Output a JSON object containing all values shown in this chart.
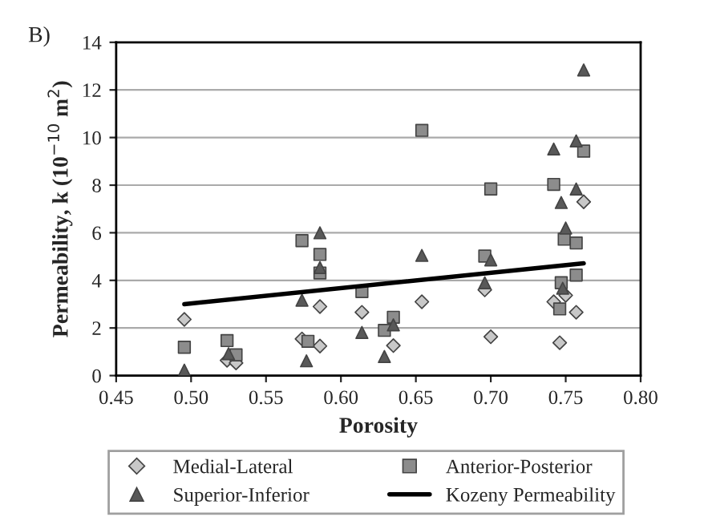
{
  "chart_data": {
    "type": "scatter",
    "title": "B)",
    "xlabel": "Porosity",
    "ylabel": "Permeability, k (10$^{−10}$ m$^{2}$)",
    "xlim": [
      0.45,
      0.8
    ],
    "xticks": [
      {
        "value": 0.45,
        "label": "0.45"
      },
      {
        "value": 0.5,
        "label": "0.50"
      },
      {
        "value": 0.55,
        "label": "0.55"
      },
      {
        "value": 0.6,
        "label": "0.60"
      },
      {
        "value": 0.65,
        "label": "0.65"
      },
      {
        "value": 0.7,
        "label": "0.70"
      },
      {
        "value": 0.75,
        "label": "0.75"
      },
      {
        "value": 0.8,
        "label": "0.80"
      }
    ],
    "ylim": [
      0,
      14
    ],
    "yticks": [
      0,
      2,
      4,
      6,
      8,
      10,
      12,
      14
    ],
    "grid": "y",
    "legend": "bottom",
    "series": [
      {
        "name": "Medial-Lateral",
        "marker": "diamond",
        "color": "#c8c8c8",
        "x": [
          0.4955,
          0.524,
          0.53,
          0.574,
          0.586,
          0.586,
          0.614,
          0.635,
          0.654,
          0.696,
          0.7,
          0.742,
          0.746,
          0.75,
          0.757,
          0.762
        ],
        "values": [
          2.36,
          0.64,
          0.53,
          1.54,
          2.9,
          1.24,
          2.66,
          1.26,
          3.1,
          3.6,
          1.63,
          3.1,
          1.38,
          3.37,
          2.66,
          7.3
        ]
      },
      {
        "name": "Anterior-Posterior",
        "marker": "square",
        "color": "#8c8c8c",
        "x": [
          0.4955,
          0.524,
          0.53,
          0.574,
          0.578,
          0.586,
          0.586,
          0.614,
          0.629,
          0.635,
          0.654,
          0.696,
          0.7,
          0.742,
          0.746,
          0.747,
          0.749,
          0.757,
          0.757,
          0.762
        ],
        "values": [
          1.19,
          1.47,
          0.87,
          5.67,
          1.44,
          5.09,
          4.31,
          3.53,
          1.9,
          2.45,
          10.3,
          5.02,
          7.84,
          8.03,
          2.8,
          3.9,
          5.73,
          5.57,
          4.22,
          9.43
        ]
      },
      {
        "name": "Superior-Inferior",
        "marker": "triangle",
        "color": "#595959",
        "x": [
          0.4955,
          0.525,
          0.577,
          0.574,
          0.586,
          0.586,
          0.614,
          0.629,
          0.635,
          0.654,
          0.696,
          0.7,
          0.742,
          0.747,
          0.75,
          0.757,
          0.757,
          0.762,
          0.748
        ],
        "values": [
          0.23,
          0.92,
          0.62,
          3.17,
          6.0,
          4.54,
          1.81,
          0.8,
          2.13,
          5.05,
          3.9,
          4.86,
          9.52,
          7.27,
          6.2,
          9.86,
          7.84,
          12.84,
          3.67
        ]
      },
      {
        "name": "Kozeny Permeability",
        "type": "line",
        "marker": "none",
        "line_style": "solid",
        "color": "#000000",
        "x": [
          0.4955,
          0.762
        ],
        "values": [
          3.0,
          4.72
        ]
      }
    ]
  }
}
